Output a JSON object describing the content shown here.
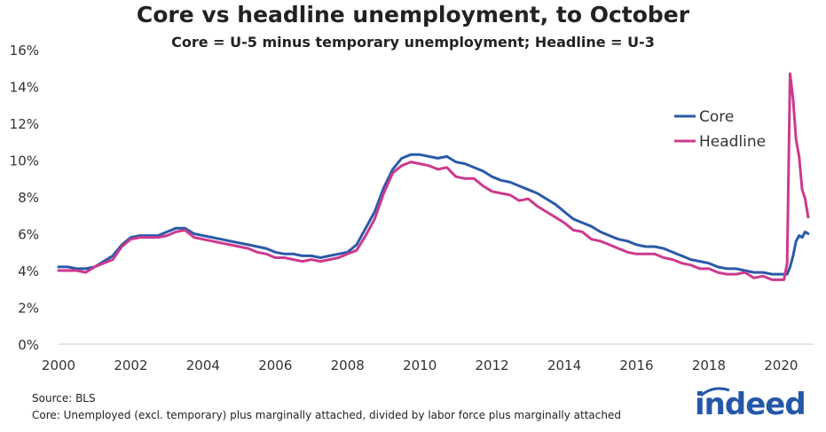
{
  "chart_data": {
    "type": "line",
    "title": "Core vs headline unemployment, to October",
    "subtitle": "Core = U-5 minus temporary unemployment; Headline = U-3",
    "ylim": [
      0,
      16
    ],
    "yticks": [
      0,
      2,
      4,
      6,
      8,
      10,
      12,
      14,
      16
    ],
    "ytick_labels": [
      "0%",
      "2%",
      "4%",
      "6%",
      "8%",
      "10%",
      "12%",
      "14%",
      "16%"
    ],
    "xlim": [
      2000,
      2020.9
    ],
    "xticks": [
      2000,
      2002,
      2004,
      2006,
      2008,
      2010,
      2012,
      2014,
      2016,
      2018,
      2020
    ],
    "xtick_labels": [
      "2000",
      "2002",
      "2004",
      "2006",
      "2008",
      "2010",
      "2012",
      "2014",
      "2016",
      "2018",
      "2020"
    ],
    "legend_position": "top-right",
    "grid": false,
    "series": [
      {
        "name": "Core",
        "color": "#2b5aa8",
        "x": [
          2000.0,
          2000.25,
          2000.5,
          2000.75,
          2001.0,
          2001.25,
          2001.5,
          2001.75,
          2002.0,
          2002.25,
          2002.5,
          2002.75,
          2003.0,
          2003.25,
          2003.5,
          2003.75,
          2004.0,
          2004.25,
          2004.5,
          2004.75,
          2005.0,
          2005.25,
          2005.5,
          2005.75,
          2006.0,
          2006.25,
          2006.5,
          2006.75,
          2007.0,
          2007.25,
          2007.5,
          2007.75,
          2008.0,
          2008.25,
          2008.5,
          2008.75,
          2009.0,
          2009.25,
          2009.5,
          2009.75,
          2010.0,
          2010.25,
          2010.5,
          2010.75,
          2011.0,
          2011.25,
          2011.5,
          2011.75,
          2012.0,
          2012.25,
          2012.5,
          2012.75,
          2013.0,
          2013.25,
          2013.5,
          2013.75,
          2014.0,
          2014.25,
          2014.5,
          2014.75,
          2015.0,
          2015.25,
          2015.5,
          2015.75,
          2016.0,
          2016.25,
          2016.5,
          2016.75,
          2017.0,
          2017.25,
          2017.5,
          2017.75,
          2018.0,
          2018.25,
          2018.5,
          2018.75,
          2019.0,
          2019.25,
          2019.5,
          2019.75,
          2020.0,
          2020.083,
          2020.167,
          2020.25,
          2020.333,
          2020.417,
          2020.5,
          2020.583,
          2020.667,
          2020.75
        ],
        "values": [
          4.2,
          4.2,
          4.1,
          4.1,
          4.2,
          4.5,
          4.8,
          5.4,
          5.8,
          5.9,
          5.9,
          5.9,
          6.1,
          6.3,
          6.3,
          6.0,
          5.9,
          5.8,
          5.7,
          5.6,
          5.5,
          5.4,
          5.3,
          5.2,
          5.0,
          4.9,
          4.9,
          4.8,
          4.8,
          4.7,
          4.8,
          4.9,
          5.0,
          5.4,
          6.3,
          7.2,
          8.5,
          9.5,
          10.1,
          10.3,
          10.3,
          10.2,
          10.1,
          10.2,
          9.9,
          9.8,
          9.6,
          9.4,
          9.1,
          8.9,
          8.8,
          8.6,
          8.4,
          8.2,
          7.9,
          7.6,
          7.2,
          6.8,
          6.6,
          6.4,
          6.1,
          5.9,
          5.7,
          5.6,
          5.4,
          5.3,
          5.3,
          5.2,
          5.0,
          4.8,
          4.6,
          4.5,
          4.4,
          4.2,
          4.1,
          4.1,
          4.0,
          3.9,
          3.9,
          3.8,
          3.8,
          3.8,
          3.8,
          4.2,
          4.8,
          5.6,
          5.9,
          5.8,
          6.1,
          6.0
        ]
      },
      {
        "name": "Headline",
        "color": "#cc3a8e",
        "x": [
          2000.0,
          2000.25,
          2000.5,
          2000.75,
          2001.0,
          2001.25,
          2001.5,
          2001.75,
          2002.0,
          2002.25,
          2002.5,
          2002.75,
          2003.0,
          2003.25,
          2003.5,
          2003.75,
          2004.0,
          2004.25,
          2004.5,
          2004.75,
          2005.0,
          2005.25,
          2005.5,
          2005.75,
          2006.0,
          2006.25,
          2006.5,
          2006.75,
          2007.0,
          2007.25,
          2007.5,
          2007.75,
          2008.0,
          2008.25,
          2008.5,
          2008.75,
          2009.0,
          2009.25,
          2009.5,
          2009.75,
          2010.0,
          2010.25,
          2010.5,
          2010.75,
          2011.0,
          2011.25,
          2011.5,
          2011.75,
          2012.0,
          2012.25,
          2012.5,
          2012.75,
          2013.0,
          2013.25,
          2013.5,
          2013.75,
          2014.0,
          2014.25,
          2014.5,
          2014.75,
          2015.0,
          2015.25,
          2015.5,
          2015.75,
          2016.0,
          2016.25,
          2016.5,
          2016.75,
          2017.0,
          2017.25,
          2017.5,
          2017.75,
          2018.0,
          2018.25,
          2018.5,
          2018.75,
          2019.0,
          2019.25,
          2019.5,
          2019.75,
          2020.0,
          2020.083,
          2020.167,
          2020.25,
          2020.333,
          2020.417,
          2020.5,
          2020.583,
          2020.667,
          2020.75
        ],
        "values": [
          4.0,
          4.0,
          4.0,
          3.9,
          4.2,
          4.4,
          4.6,
          5.3,
          5.7,
          5.8,
          5.8,
          5.8,
          5.9,
          6.1,
          6.2,
          5.8,
          5.7,
          5.6,
          5.5,
          5.4,
          5.3,
          5.2,
          5.0,
          4.9,
          4.7,
          4.7,
          4.6,
          4.5,
          4.6,
          4.5,
          4.6,
          4.7,
          4.9,
          5.1,
          5.9,
          6.8,
          8.2,
          9.3,
          9.7,
          9.9,
          9.8,
          9.7,
          9.5,
          9.6,
          9.1,
          9.0,
          9.0,
          8.6,
          8.3,
          8.2,
          8.1,
          7.8,
          7.9,
          7.5,
          7.2,
          6.9,
          6.6,
          6.2,
          6.1,
          5.7,
          5.6,
          5.4,
          5.2,
          5.0,
          4.9,
          4.9,
          4.9,
          4.7,
          4.6,
          4.4,
          4.3,
          4.1,
          4.1,
          3.9,
          3.8,
          3.8,
          3.9,
          3.6,
          3.7,
          3.5,
          3.5,
          3.5,
          4.4,
          14.7,
          13.3,
          11.1,
          10.2,
          8.4,
          7.9,
          6.9
        ]
      }
    ]
  },
  "source": "Source: BLS",
  "footnote": "Core: Unemployed (excl. temporary) plus marginally attached, divided by labor force plus marginally attached",
  "logo_text": "indeed",
  "logo_color": "#2557a7"
}
